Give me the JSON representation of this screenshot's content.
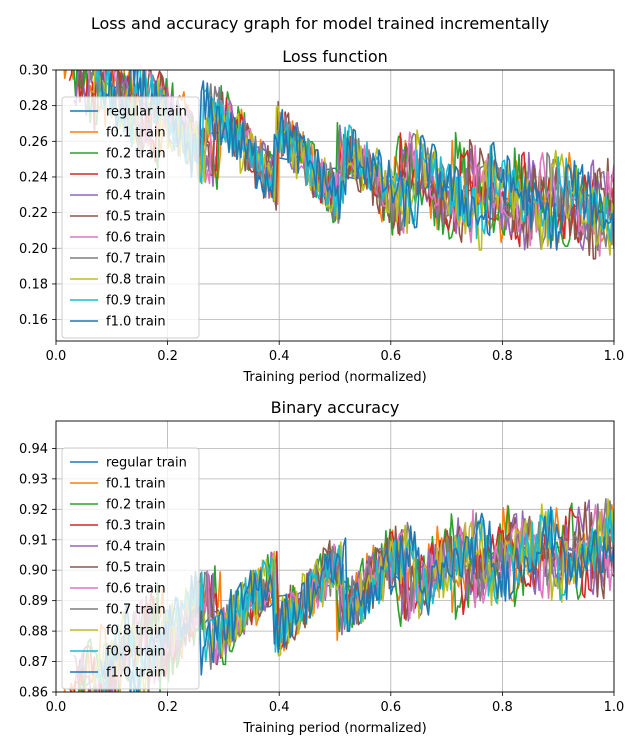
{
  "figure": {
    "title": "Loss and accuracy graph for model trained incrementally"
  },
  "chart_data": [
    {
      "type": "line",
      "title": "Loss function",
      "xlabel": "Training period (normalized)",
      "ylabel": "",
      "xlim": [
        0,
        1
      ],
      "ylim": [
        0.148,
        0.3
      ],
      "xticks": [
        "0.0",
        "0.2",
        "0.4",
        "0.6",
        "0.8",
        "1.0"
      ],
      "yticks": [
        "0.16",
        "0.18",
        "0.20",
        "0.22",
        "0.24",
        "0.26",
        "0.28",
        "0.30"
      ],
      "grid": true,
      "legend_position": "upper-left",
      "trend": [
        [
          0.0,
          0.305
        ],
        [
          0.1,
          0.292
        ],
        [
          0.2,
          0.27
        ],
        [
          0.3,
          0.262
        ],
        [
          0.4,
          0.252
        ],
        [
          0.5,
          0.243
        ],
        [
          0.6,
          0.238
        ],
        [
          0.7,
          0.233
        ],
        [
          0.8,
          0.229
        ],
        [
          0.9,
          0.225
        ],
        [
          1.0,
          0.222
        ]
      ],
      "series": [
        {
          "name": "regular train",
          "color": "#1f77b4"
        },
        {
          "name": "f0.1 train",
          "color": "#ff7f0e"
        },
        {
          "name": "f0.2 train",
          "color": "#2ca02c"
        },
        {
          "name": "f0.3 train",
          "color": "#d62728"
        },
        {
          "name": "f0.4 train",
          "color": "#9467bd"
        },
        {
          "name": "f0.5 train",
          "color": "#8c564b"
        },
        {
          "name": "f0.6 train",
          "color": "#e377c2"
        },
        {
          "name": "f0.7 train",
          "color": "#7f7f7f"
        },
        {
          "name": "f0.8 train",
          "color": "#bcbd22"
        },
        {
          "name": "f0.9 train",
          "color": "#17becf"
        },
        {
          "name": "f1.0 train",
          "color": "#1f77b4"
        }
      ]
    },
    {
      "type": "line",
      "title": "Binary accuracy",
      "xlabel": "Training period (normalized)",
      "ylabel": "",
      "xlim": [
        0,
        1
      ],
      "ylim": [
        0.86,
        0.949
      ],
      "xticks": [
        "0.0",
        "0.2",
        "0.4",
        "0.6",
        "0.8",
        "1.0"
      ],
      "yticks": [
        "0.86",
        "0.87",
        "0.88",
        "0.89",
        "0.90",
        "0.91",
        "0.92",
        "0.93",
        "0.94"
      ],
      "grid": true,
      "legend_position": "upper-left",
      "trend": [
        [
          0.0,
          0.855
        ],
        [
          0.1,
          0.868
        ],
        [
          0.2,
          0.88
        ],
        [
          0.3,
          0.886
        ],
        [
          0.4,
          0.89
        ],
        [
          0.5,
          0.894
        ],
        [
          0.6,
          0.898
        ],
        [
          0.7,
          0.901
        ],
        [
          0.8,
          0.904
        ],
        [
          0.9,
          0.906
        ],
        [
          1.0,
          0.908
        ]
      ],
      "series": [
        {
          "name": "regular train",
          "color": "#1f77b4"
        },
        {
          "name": "f0.1 train",
          "color": "#ff7f0e"
        },
        {
          "name": "f0.2 train",
          "color": "#2ca02c"
        },
        {
          "name": "f0.3 train",
          "color": "#d62728"
        },
        {
          "name": "f0.4 train",
          "color": "#9467bd"
        },
        {
          "name": "f0.5 train",
          "color": "#8c564b"
        },
        {
          "name": "f0.6 train",
          "color": "#e377c2"
        },
        {
          "name": "f0.7 train",
          "color": "#7f7f7f"
        },
        {
          "name": "f0.8 train",
          "color": "#bcbd22"
        },
        {
          "name": "f0.9 train",
          "color": "#17becf"
        },
        {
          "name": "f1.0 train",
          "color": "#1f77b4"
        }
      ]
    }
  ]
}
